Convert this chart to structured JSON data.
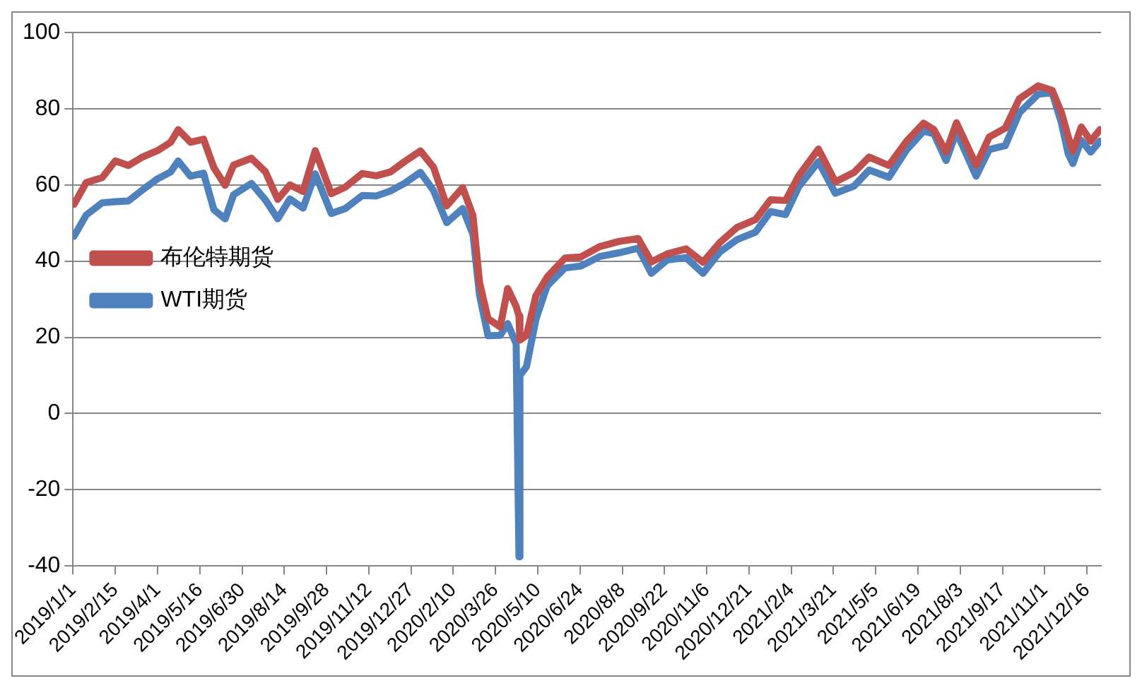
{
  "chart_data": {
    "type": "line",
    "x": [
      "2019-01-02",
      "2019-01-15",
      "2019-02-01",
      "2019-02-15",
      "2019-03-01",
      "2019-03-15",
      "2019-04-01",
      "2019-04-15",
      "2019-04-23",
      "2019-05-06",
      "2019-05-20",
      "2019-05-31",
      "2019-06-12",
      "2019-06-21",
      "2019-07-10",
      "2019-07-25",
      "2019-08-07",
      "2019-08-20",
      "2019-09-03",
      "2019-09-16",
      "2019-10-03",
      "2019-10-18",
      "2019-11-05",
      "2019-11-20",
      "2019-12-05",
      "2019-12-20",
      "2020-01-06",
      "2020-01-20",
      "2020-02-03",
      "2020-02-20",
      "2020-03-02",
      "2020-03-09",
      "2020-03-18",
      "2020-03-31",
      "2020-04-08",
      "2020-04-17",
      "2020-04-20",
      "2020-04-21",
      "2020-04-28",
      "2020-05-08",
      "2020-05-20",
      "2020-06-08",
      "2020-06-25",
      "2020-07-15",
      "2020-08-05",
      "2020-08-25",
      "2020-09-08",
      "2020-09-25",
      "2020-10-15",
      "2020-11-02",
      "2020-11-20",
      "2020-12-08",
      "2020-12-28",
      "2021-01-13",
      "2021-01-29",
      "2021-02-12",
      "2021-03-05",
      "2021-03-23",
      "2021-04-12",
      "2021-04-28",
      "2021-05-19",
      "2021-06-07",
      "2021-06-25",
      "2021-07-06",
      "2021-07-19",
      "2021-07-30",
      "2021-08-20",
      "2021-09-03",
      "2021-09-20",
      "2021-10-05",
      "2021-10-25",
      "2021-11-09",
      "2021-11-19",
      "2021-11-26",
      "2021-12-01",
      "2021-12-10",
      "2021-12-20",
      "2021-12-30"
    ],
    "series": [
      {
        "name": "WTI期货",
        "color": "#4f81bd",
        "values": [
          46.5,
          52.1,
          55.3,
          55.6,
          55.8,
          58.5,
          61.6,
          63.4,
          66.3,
          62.3,
          63.1,
          53.5,
          51.1,
          57.4,
          60.4,
          56.0,
          51.1,
          56.3,
          53.9,
          62.9,
          52.5,
          53.8,
          57.2,
          57.1,
          58.4,
          60.4,
          63.3,
          58.5,
          50.1,
          53.8,
          47.0,
          31.1,
          20.4,
          20.5,
          23.6,
          18.3,
          -37.6,
          10.0,
          12.3,
          24.7,
          33.5,
          38.2,
          38.7,
          41.2,
          42.2,
          43.4,
          36.8,
          40.3,
          40.9,
          36.8,
          42.4,
          45.6,
          47.6,
          53.0,
          52.2,
          59.5,
          66.1,
          57.8,
          59.7,
          63.9,
          62.0,
          69.2,
          74.1,
          73.4,
          66.4,
          73.9,
          62.3,
          69.3,
          70.3,
          78.9,
          83.8,
          84.2,
          76.1,
          68.2,
          65.6,
          71.7,
          68.6,
          71.5
        ]
      },
      {
        "name": "布伦特期货",
        "color": "#c0504d",
        "values": [
          54.9,
          60.6,
          61.9,
          66.3,
          65.1,
          67.2,
          69.0,
          71.2,
          74.5,
          71.2,
          72.0,
          64.5,
          59.9,
          65.2,
          67.0,
          63.4,
          56.2,
          60.0,
          58.3,
          69.0,
          57.7,
          59.4,
          63.0,
          62.4,
          63.4,
          66.1,
          68.9,
          64.6,
          54.5,
          59.3,
          51.9,
          34.4,
          24.9,
          22.7,
          32.8,
          28.1,
          25.6,
          19.3,
          20.5,
          30.9,
          35.8,
          40.8,
          41.1,
          43.8,
          45.2,
          45.9,
          39.8,
          41.9,
          43.2,
          39.7,
          44.9,
          48.8,
          50.9,
          56.1,
          55.9,
          62.4,
          69.4,
          60.8,
          63.3,
          67.3,
          65.1,
          71.5,
          76.2,
          74.5,
          68.6,
          76.3,
          65.2,
          72.6,
          74.9,
          82.6,
          86.0,
          84.8,
          78.9,
          72.7,
          68.9,
          75.2,
          71.5,
          74.5
        ]
      }
    ],
    "xlim": [
      "2019-01-01",
      "2021-12-31"
    ],
    "xticks": [
      {
        "value": "2019-01-01",
        "label": "2019/1/1"
      },
      {
        "value": "2019-02-15",
        "label": "2019/2/15"
      },
      {
        "value": "2019-04-01",
        "label": "2019/4/1"
      },
      {
        "value": "2019-05-16",
        "label": "2019/5/16"
      },
      {
        "value": "2019-06-30",
        "label": "2019/6/30"
      },
      {
        "value": "2019-08-14",
        "label": "2019/8/14"
      },
      {
        "value": "2019-09-28",
        "label": "2019/9/28"
      },
      {
        "value": "2019-11-12",
        "label": "2019/11/12"
      },
      {
        "value": "2019-12-27",
        "label": "2019/12/27"
      },
      {
        "value": "2020-02-10",
        "label": "2020/2/10"
      },
      {
        "value": "2020-03-26",
        "label": "2020/3/26"
      },
      {
        "value": "2020-05-10",
        "label": "2020/5/10"
      },
      {
        "value": "2020-06-24",
        "label": "2020/6/24"
      },
      {
        "value": "2020-08-08",
        "label": "2020/8/8"
      },
      {
        "value": "2020-09-22",
        "label": "2020/9/22"
      },
      {
        "value": "2020-11-06",
        "label": "2020/11/6"
      },
      {
        "value": "2020-12-21",
        "label": "2020/12/21"
      },
      {
        "value": "2021-02-04",
        "label": "2021/2/4"
      },
      {
        "value": "2021-03-21",
        "label": "2021/3/21"
      },
      {
        "value": "2021-05-05",
        "label": "2021/5/5"
      },
      {
        "value": "2021-06-19",
        "label": "2021/6/19"
      },
      {
        "value": "2021-08-03",
        "label": "2021/8/3"
      },
      {
        "value": "2021-09-17",
        "label": "2021/9/17"
      },
      {
        "value": "2021-11-01",
        "label": "2021/11/1"
      },
      {
        "value": "2021-12-16",
        "label": "2021/12/16"
      }
    ],
    "ylim": [
      -40,
      100
    ],
    "yticks": [
      -40,
      -20,
      0,
      20,
      40,
      60,
      80,
      100
    ],
    "grid": "y",
    "legend": "top",
    "marker": "none",
    "line_style": "solid"
  }
}
